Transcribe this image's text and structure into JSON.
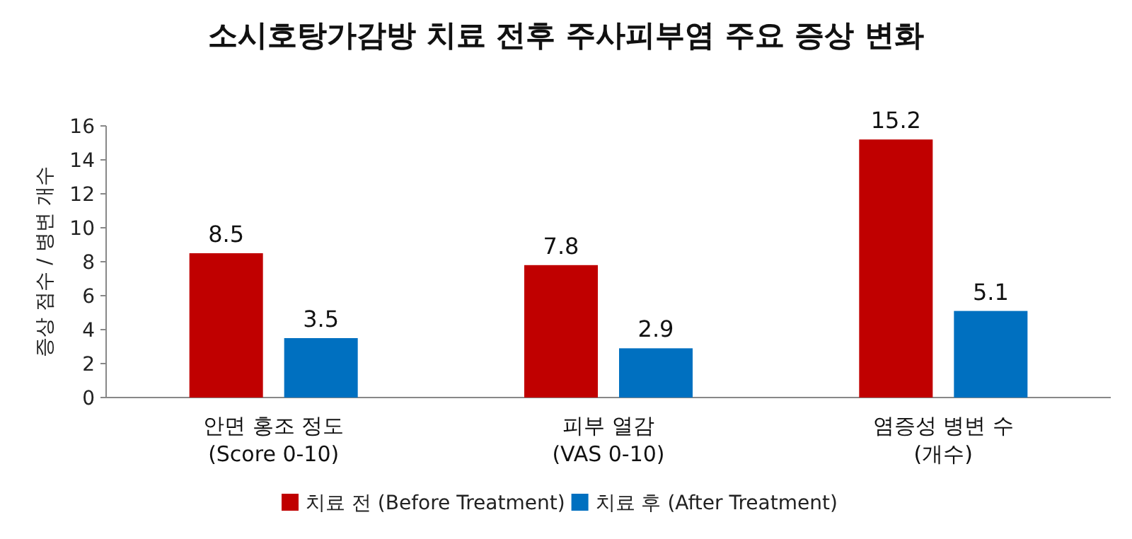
{
  "chart_data": {
    "type": "bar",
    "title": "소시호탕가감방 치료 전후 주사피부염 주요 증상 변화",
    "ylabel": "증상 점수 / 병변 개수",
    "categories": [
      "안면 홍조 정도\n(Score 0-10)",
      "피부 열감\n(VAS 0-10)",
      "염증성 병변 수\n(개수)"
    ],
    "series": [
      {
        "name": "치료 전 (Before Treatment)",
        "color": "#c00000",
        "values": [
          8.5,
          7.8,
          15.2
        ]
      },
      {
        "name": "치료 후 (After Treatment)",
        "color": "#0070c0",
        "values": [
          3.5,
          2.9,
          5.1
        ]
      }
    ],
    "ylim": [
      0,
      16
    ],
    "yticks": [
      0,
      2,
      4,
      6,
      8,
      10,
      12,
      14,
      16
    ],
    "data_labels": true,
    "legend": "bottom",
    "grid": false
  }
}
